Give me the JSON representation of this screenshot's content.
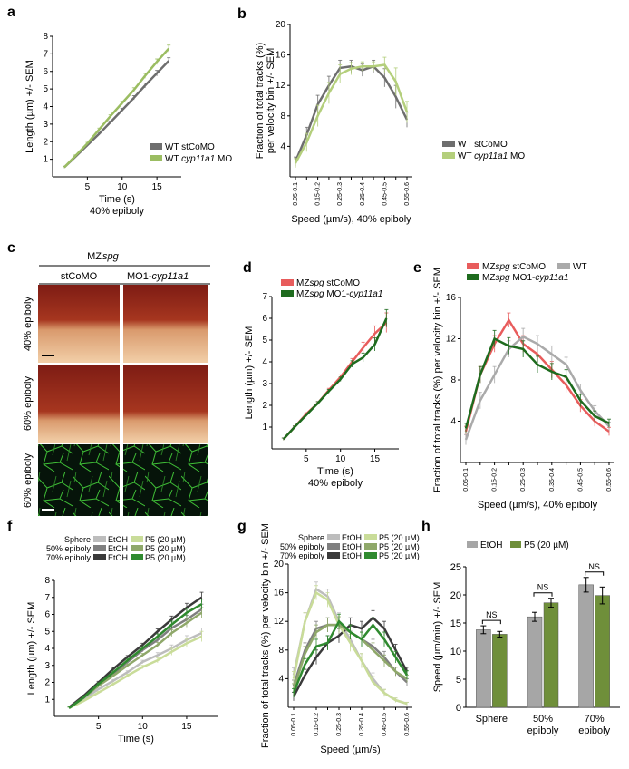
{
  "chart_data": [
    {
      "id": "a",
      "type": "line",
      "panel": "a",
      "ylabel": "Length (µm) +/- SEM",
      "xlabel": "Time (s)",
      "xlabel2": "40% epiboly",
      "xlim": [
        0,
        18.5
      ],
      "ylim": [
        0,
        8
      ],
      "xticks": [
        5,
        10,
        15
      ],
      "yticks": [
        1,
        2,
        3,
        4,
        5,
        6,
        7,
        8
      ],
      "x": [
        1.7,
        3.3,
        5,
        6.7,
        8.3,
        10,
        11.7,
        13.3,
        15,
        16.7
      ],
      "legend_pos": "bottom-right",
      "series": [
        {
          "name": "WT stCoMO",
          "italic": "",
          "color": "#6e6e6e",
          "values": [
            0.55,
            1.15,
            1.8,
            2.45,
            3.1,
            3.8,
            4.5,
            5.2,
            5.9,
            6.6
          ],
          "err": [
            0.05,
            0.05,
            0.06,
            0.07,
            0.08,
            0.1,
            0.12,
            0.14,
            0.16,
            0.18
          ]
        },
        {
          "name": "WT ",
          "italic": "cyp11a1",
          "suffix": " MO",
          "color": "#9bbd62",
          "values": [
            0.55,
            1.2,
            1.9,
            2.7,
            3.45,
            4.2,
            4.95,
            5.75,
            6.55,
            7.3
          ],
          "err": [
            0.05,
            0.05,
            0.06,
            0.07,
            0.08,
            0.1,
            0.12,
            0.14,
            0.16,
            0.2
          ]
        }
      ]
    },
    {
      "id": "b",
      "type": "line",
      "panel": "b",
      "ylabel": "Fraction of total tracks (%)",
      "ylabel2": "per velocity bin +/- SEM",
      "xlabel": "Speed (µm/s), 40% epiboly",
      "categories": [
        "0.05-0.1",
        "0.1-0.15",
        "0.15-0.2",
        "0.2-0.25",
        "0.25-0.3",
        "0.3-0.35",
        "0.35-0.4",
        "0.4-0.45",
        "0.45-0.5",
        "0.5-0.55",
        "0.55-0.6"
      ],
      "category_labels_shown": [
        "0.05-0.1",
        "0.15-0.2",
        "0.25-0.3",
        "0.35-0.4",
        "0.45-0.5",
        "0.55-0.6"
      ],
      "ylim": [
        0,
        20
      ],
      "yticks": [
        4,
        8,
        12,
        16,
        20
      ],
      "legend_pos": "bottom-right",
      "series": [
        {
          "name": "WT stCoMO",
          "italic": "",
          "color": "#6e6e6e",
          "values": [
            2.0,
            5.5,
            9.5,
            12.0,
            14.3,
            14.5,
            14.0,
            14.5,
            13.0,
            10.5,
            7.5
          ],
          "err": [
            0.6,
            1.0,
            1.2,
            1.2,
            1.0,
            0.8,
            0.8,
            0.8,
            1.2,
            1.5,
            1.0
          ]
        },
        {
          "name": "WT ",
          "italic": "cyp11a1",
          "suffix": " MO",
          "color": "#b4cf7c",
          "values": [
            1.8,
            4.5,
            8.0,
            11.0,
            13.5,
            14.2,
            14.5,
            14.5,
            14.7,
            12.5,
            8.5
          ],
          "err": [
            0.6,
            1.2,
            1.4,
            1.4,
            1.2,
            0.8,
            0.6,
            0.6,
            1.0,
            1.8,
            1.4
          ]
        }
      ]
    },
    {
      "id": "d",
      "type": "line",
      "panel": "d",
      "ylabel": "Length (µm) +/- SEM",
      "xlabel": "Time (s)",
      "xlabel2": "40% epiboly",
      "xlim": [
        0,
        18.5
      ],
      "ylim": [
        0,
        7
      ],
      "xticks": [
        5,
        10,
        15
      ],
      "yticks": [
        1,
        2,
        3,
        4,
        5,
        6,
        7
      ],
      "x": [
        1.7,
        3.3,
        5,
        6.7,
        8.3,
        10,
        11.7,
        13.3,
        15,
        16.7
      ],
      "legend_pos": "top-left",
      "series": [
        {
          "name": "MZ",
          "italic": "spg",
          "suffix": " stCoMO",
          "color": "#e85c5c",
          "values": [
            0.45,
            1.0,
            1.6,
            2.1,
            2.7,
            3.3,
            4.0,
            4.65,
            5.3,
            5.8
          ],
          "err": [
            0.05,
            0.05,
            0.06,
            0.07,
            0.08,
            0.1,
            0.15,
            0.25,
            0.35,
            0.45
          ]
        },
        {
          "name": "MZ",
          "italic": "spg",
          "suffix": " MO1-",
          "italic2": "cyp11a1",
          "color": "#1e6b1e",
          "values": [
            0.45,
            1.0,
            1.55,
            2.1,
            2.65,
            3.2,
            3.9,
            4.2,
            4.8,
            6.0
          ],
          "err": [
            0.05,
            0.05,
            0.06,
            0.07,
            0.08,
            0.1,
            0.15,
            0.2,
            0.3,
            0.4
          ]
        }
      ]
    },
    {
      "id": "e",
      "type": "line",
      "panel": "e",
      "ylabel": "Fraction of total tracks (%) per velocity bin +/- SEM",
      "xlabel": "Speed (µm/s), 40% epiboly",
      "categories": [
        "0.05-0.1",
        "0.1-0.15",
        "0.15-0.2",
        "0.2-0.25",
        "0.25-0.3",
        "0.3-0.35",
        "0.35-0.4",
        "0.4-0.45",
        "0.45-0.5",
        "0.5-0.55",
        "0.55-0.6"
      ],
      "category_labels_shown": [
        "0.05-0.1",
        "0.15-0.2",
        "0.25-0.3",
        "0.35-0.4",
        "0.45-0.5",
        "0.55-0.6"
      ],
      "ylim": [
        0,
        16
      ],
      "yticks": [
        4,
        8,
        12,
        16
      ],
      "legend_pos": "top",
      "series": [
        {
          "name": "MZ",
          "italic": "spg",
          "suffix": " stCoMO",
          "color": "#e85c5c",
          "values": [
            3.0,
            8.5,
            11.5,
            13.8,
            11.5,
            10.5,
            9.0,
            7.5,
            5.5,
            4.0,
            3.0
          ],
          "err": [
            0.5,
            0.8,
            0.8,
            0.7,
            0.8,
            0.8,
            0.8,
            0.7,
            0.6,
            0.5,
            0.4
          ]
        },
        {
          "name": "WT",
          "italic": "",
          "color": "#aaaaaa",
          "values": [
            2.2,
            6.0,
            8.5,
            11.0,
            12.2,
            11.5,
            10.5,
            9.5,
            7.0,
            5.0,
            3.5
          ],
          "err": [
            0.5,
            0.8,
            0.8,
            0.8,
            0.8,
            0.8,
            0.8,
            0.7,
            0.6,
            0.5,
            0.4
          ]
        },
        {
          "name": "MZ",
          "italic": "spg",
          "suffix": " MO1-",
          "italic2": "cyp11a1",
          "color": "#1e6b1e",
          "values": [
            3.3,
            8.5,
            12.0,
            11.3,
            11.0,
            9.5,
            8.8,
            8.3,
            6.0,
            4.5,
            3.8
          ],
          "err": [
            0.5,
            0.8,
            0.8,
            0.8,
            0.8,
            0.8,
            0.8,
            0.7,
            0.6,
            0.5,
            0.4
          ]
        }
      ]
    },
    {
      "id": "f",
      "type": "line",
      "panel": "f",
      "ylabel": "Length (µm) +/- SEM",
      "xlabel": "Time (s)",
      "xlim": [
        0,
        18.5
      ],
      "ylim": [
        0,
        8
      ],
      "xticks": [
        5,
        10,
        15
      ],
      "yticks": [
        1,
        2,
        3,
        4,
        5,
        6,
        7,
        8
      ],
      "x": [
        1.7,
        3.3,
        5,
        6.7,
        8.3,
        10,
        11.7,
        13.3,
        15,
        16.7
      ],
      "legend_pos": "top",
      "series": [
        {
          "name": "Sphere EtOH",
          "color": "#bdbdbd",
          "values": [
            0.5,
            1.0,
            1.6,
            2.1,
            2.6,
            3.2,
            3.6,
            4.0,
            4.5,
            4.9
          ],
          "err": [
            0.05,
            0.05,
            0.06,
            0.07,
            0.08,
            0.1,
            0.15,
            0.2,
            0.25,
            0.3
          ]
        },
        {
          "name": "50% epiboly EtOH",
          "color": "#7f7f7f",
          "values": [
            0.5,
            1.1,
            1.8,
            2.5,
            3.2,
            3.9,
            4.5,
            5.2,
            5.7,
            6.3
          ],
          "err": [
            0.05,
            0.05,
            0.06,
            0.07,
            0.08,
            0.1,
            0.15,
            0.2,
            0.25,
            0.3
          ]
        },
        {
          "name": "70% epiboly EtOH",
          "color": "#3a3a3a",
          "values": [
            0.55,
            1.2,
            2.0,
            2.8,
            3.5,
            4.2,
            5.0,
            5.7,
            6.4,
            7.0
          ],
          "err": [
            0.05,
            0.05,
            0.06,
            0.07,
            0.08,
            0.1,
            0.15,
            0.2,
            0.25,
            0.3
          ]
        },
        {
          "name": "Sphere P5 (20 µM)",
          "color": "#c9dc99",
          "values": [
            0.5,
            0.9,
            1.4,
            1.9,
            2.4,
            2.9,
            3.3,
            3.8,
            4.3,
            4.7
          ],
          "err": [
            0.05,
            0.05,
            0.06,
            0.07,
            0.08,
            0.1,
            0.15,
            0.2,
            0.25,
            0.3
          ]
        },
        {
          "name": "50% epiboly P5 (20 µM)",
          "color": "#8fa86a",
          "values": [
            0.5,
            1.1,
            1.8,
            2.4,
            3.0,
            3.6,
            4.2,
            4.9,
            5.5,
            6.1
          ],
          "err": [
            0.05,
            0.05,
            0.06,
            0.07,
            0.08,
            0.1,
            0.15,
            0.2,
            0.25,
            0.3
          ]
        },
        {
          "name": "70% epiboly P5 (20 µM)",
          "color": "#2f8a2f",
          "values": [
            0.5,
            1.1,
            1.9,
            2.6,
            3.3,
            4.0,
            4.7,
            5.4,
            6.1,
            6.6
          ],
          "err": [
            0.05,
            0.05,
            0.06,
            0.07,
            0.08,
            0.1,
            0.15,
            0.2,
            0.25,
            0.3
          ]
        }
      ]
    },
    {
      "id": "g",
      "type": "line",
      "panel": "g",
      "ylabel": "Fraction of total tracks (%) per velocity bin +/- SEM",
      "xlabel": "Speed (µm/s)",
      "categories": [
        "0.05-0.1",
        "0.1-0.15",
        "0.15-0.2",
        "0.2-0.25",
        "0.25-0.3",
        "0.3-0.35",
        "0.35-0.4",
        "0.4-0.45",
        "0.45-0.5",
        "0.5-0.55",
        "0.55-0.6"
      ],
      "category_labels_shown": [
        "0.05-0.1",
        "0.15-0.2",
        "0.25-0.3",
        "0.35-0.4",
        "0.45-0.5",
        "0.55-0.6"
      ],
      "ylim": [
        0,
        20
      ],
      "yticks": [
        4,
        8,
        12,
        16,
        20
      ],
      "legend_pos": "top",
      "series": [
        {
          "name": "Sphere EtOH",
          "color": "#bdbdbd",
          "values": [
            4.5,
            12.0,
            16.5,
            15.5,
            12.0,
            9.5,
            6.5,
            4.0,
            2.0,
            1.0,
            0.5
          ],
          "err": [
            1.0,
            1.2,
            1.0,
            1.0,
            1.2,
            1.2,
            1.0,
            0.8,
            0.5,
            0.3,
            0.2
          ]
        },
        {
          "name": "50% epiboly EtOH",
          "color": "#7f7f7f",
          "values": [
            3.0,
            8.0,
            11.0,
            11.5,
            11.5,
            10.5,
            9.5,
            8.5,
            7.0,
            5.0,
            3.5
          ],
          "err": [
            0.8,
            1.0,
            1.0,
            1.0,
            1.0,
            1.0,
            1.0,
            1.0,
            0.8,
            0.6,
            0.5
          ]
        },
        {
          "name": "70% epiboly EtOH",
          "color": "#3a3a3a",
          "values": [
            1.5,
            4.5,
            7.0,
            9.0,
            10.0,
            11.5,
            11.0,
            12.5,
            11.0,
            8.0,
            5.0
          ],
          "err": [
            0.6,
            0.8,
            1.0,
            1.0,
            1.0,
            1.0,
            1.0,
            1.0,
            1.0,
            0.8,
            0.6
          ]
        },
        {
          "name": "Sphere P5 (20 µM)",
          "color": "#c9dc99",
          "values": [
            4.0,
            12.0,
            16.0,
            15.0,
            11.5,
            9.0,
            6.5,
            3.5,
            2.0,
            1.0,
            0.5
          ],
          "err": [
            1.0,
            1.2,
            1.0,
            1.0,
            1.2,
            1.2,
            1.0,
            0.8,
            0.5,
            0.3,
            0.2
          ]
        },
        {
          "name": "50% epiboly P5 (20 µM)",
          "color": "#8fa86a",
          "values": [
            2.5,
            7.5,
            10.5,
            11.5,
            11.5,
            10.5,
            9.5,
            8.0,
            6.5,
            5.0,
            4.0
          ],
          "err": [
            0.8,
            1.0,
            1.0,
            1.0,
            1.0,
            1.0,
            1.0,
            1.0,
            0.8,
            0.6,
            0.5
          ]
        },
        {
          "name": "70% epiboly P5 (20 µM)",
          "color": "#2f8a2f",
          "values": [
            2.0,
            6.0,
            8.5,
            9.0,
            12.0,
            10.5,
            9.5,
            11.5,
            9.5,
            7.0,
            4.5
          ],
          "err": [
            0.6,
            0.8,
            1.0,
            1.0,
            1.0,
            1.0,
            1.0,
            1.0,
            1.0,
            0.8,
            0.6
          ]
        }
      ]
    },
    {
      "id": "h",
      "type": "bar",
      "panel": "h",
      "ylabel": "Speed (µm/min) +/- SEM",
      "categories": [
        "Sphere",
        "50% epiboly",
        "70% epiboly"
      ],
      "category_lines": [
        [
          "Sphere"
        ],
        [
          "50%",
          "epiboly"
        ],
        [
          "70%",
          "epiboly"
        ]
      ],
      "ylim": [
        0,
        25
      ],
      "yticks": [
        0,
        5,
        10,
        15,
        20,
        25
      ],
      "legend_pos": "top",
      "significance": [
        "NS",
        "NS",
        "NS"
      ],
      "series": [
        {
          "name": "EtOH",
          "color": "#a6a6a6",
          "values": [
            13.8,
            16.1,
            21.8
          ],
          "err": [
            0.7,
            0.8,
            1.3
          ]
        },
        {
          "name": "P5 (20 µM)",
          "color": "#6f8f3a",
          "values": [
            13.0,
            18.6,
            19.9
          ],
          "err": [
            0.5,
            0.8,
            1.5
          ]
        }
      ]
    }
  ],
  "panel_c": {
    "label": "c",
    "genotype_prefix": "MZ",
    "genotype_italic": "spg",
    "col_left": "stCoMO",
    "col_right_prefix": "MO1-",
    "col_right_italic": "cyp11a1",
    "rows": [
      "40% epiboly",
      "60% epiboly",
      "60% epiboly"
    ]
  },
  "colors": {
    "embryo_top": "#8a2418",
    "embryo_bottom": "#e7b48a",
    "membrane": "#46c93a"
  }
}
